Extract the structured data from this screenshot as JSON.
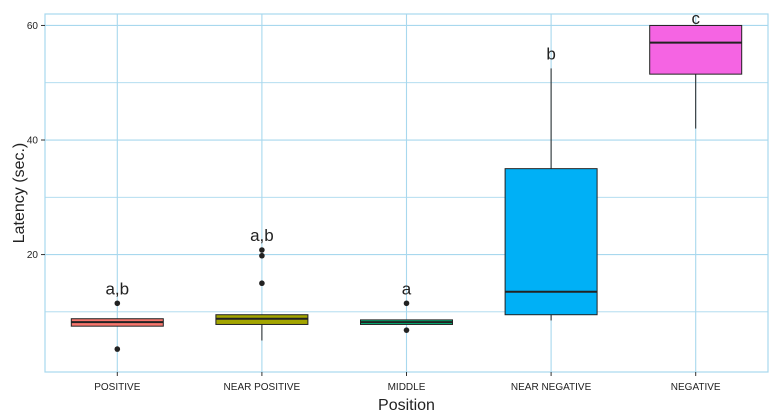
{
  "chart_data": {
    "type": "box",
    "xlabel": "Position",
    "ylabel": "Latency (sec.)",
    "ylim": [
      -0.5,
      62
    ],
    "yticks": [
      20,
      40,
      60
    ],
    "grid": true,
    "legend": "none",
    "categories": [
      "POSITIVE",
      "NEAR POSITIVE",
      "MIDDLE",
      "NEAR NEGATIVE",
      "NEGATIVE"
    ],
    "boxes": [
      {
        "category": "POSITIVE",
        "fill": "#f8766d",
        "q1": 7.5,
        "median": 8.2,
        "q3": 8.8,
        "whisker_low": 7.5,
        "whisker_high": 8.8,
        "outliers": [
          11.5,
          3.5
        ],
        "label": "a,b"
      },
      {
        "category": "NEAR POSITIVE",
        "fill": "#a3a500",
        "q1": 7.8,
        "median": 8.8,
        "q3": 9.5,
        "whisker_low": 5.0,
        "whisker_high": 9.5,
        "outliers": [
          15.0,
          19.8,
          20.8
        ],
        "label": "a,b"
      },
      {
        "category": "MIDDLE",
        "fill": "#00bf7d",
        "q1": 7.8,
        "median": 8.2,
        "q3": 8.6,
        "whisker_low": 7.8,
        "whisker_high": 8.6,
        "outliers": [
          11.5,
          6.8
        ],
        "label": "a"
      },
      {
        "category": "NEAR NEGATIVE",
        "fill": "#00b0f6",
        "q1": 9.5,
        "median": 13.5,
        "q3": 35.0,
        "whisker_low": 8.5,
        "whisker_high": 52.5,
        "outliers": [],
        "label": "b"
      },
      {
        "category": "NEGATIVE",
        "fill": "#f564e3",
        "q1": 51.5,
        "median": 57.0,
        "q3": 60.0,
        "whisker_low": 42.0,
        "whisker_high": 60.0,
        "outliers": [],
        "label": "c"
      }
    ],
    "colors": {
      "grid": "#a8d8ee",
      "panel_border": "#a8d8ee",
      "box_line": "#222222",
      "text": "#222222"
    }
  }
}
